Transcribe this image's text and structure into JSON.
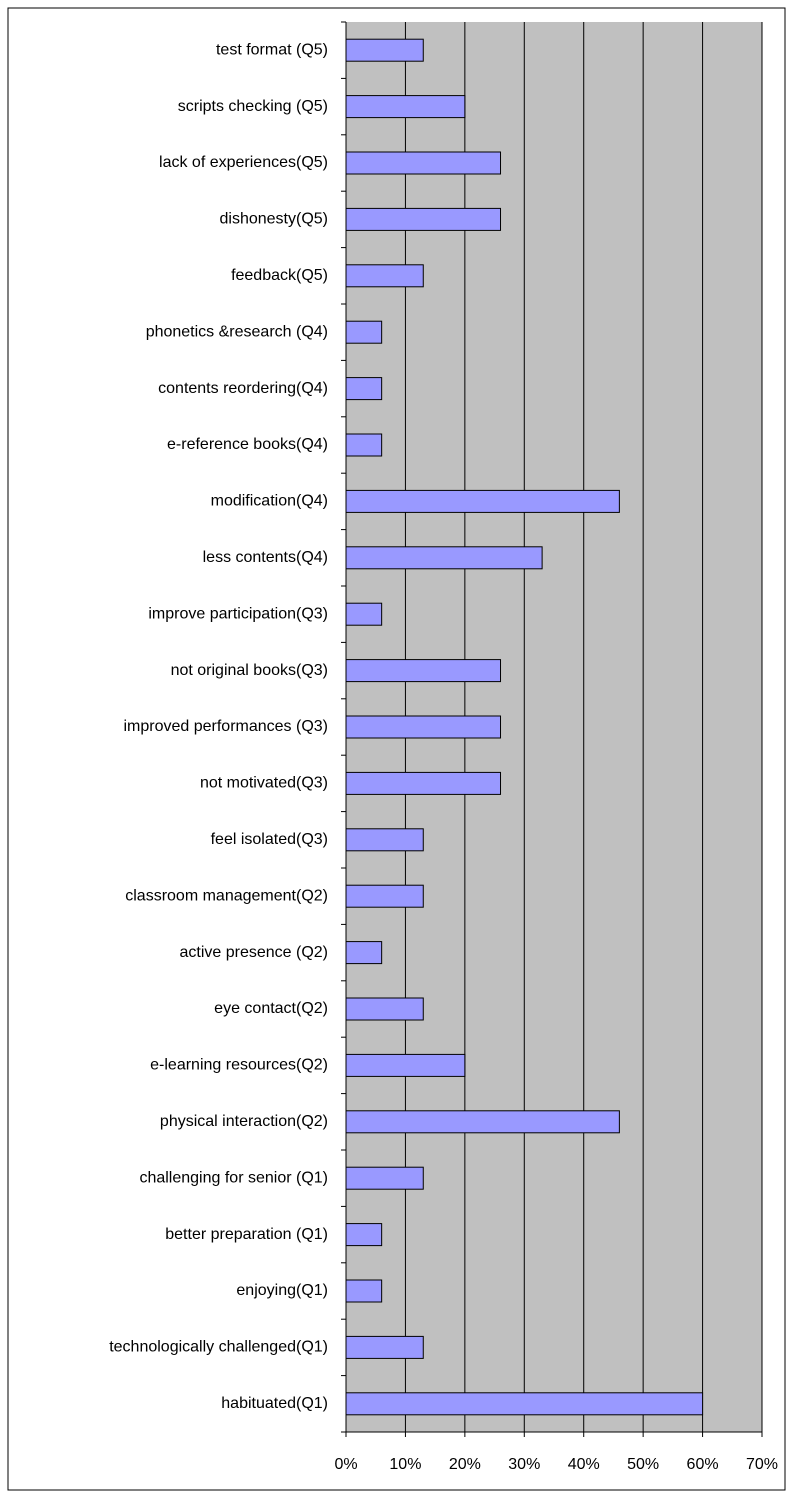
{
  "chart_data": {
    "type": "barh",
    "categories": [
      "test format (Q5)",
      "scripts checking (Q5)",
      "lack of experiences(Q5)",
      "dishonesty(Q5)",
      "feedback(Q5)",
      "phonetics &research (Q4)",
      "contents reordering(Q4)",
      "e-reference books(Q4)",
      "modification(Q4)",
      "less contents(Q4)",
      "improve participation(Q3)",
      "not original books(Q3)",
      "improved performances (Q3)",
      "not motivated(Q3)",
      "feel isolated(Q3)",
      "classroom management(Q2)",
      "active presence (Q2)",
      "eye contact(Q2)",
      "e-learning resources(Q2)",
      "physical interaction(Q2)",
      "challenging for senior (Q1)",
      "better preparation (Q1)",
      "enjoying(Q1)",
      "technologically challenged(Q1)",
      "habituated(Q1)"
    ],
    "values": [
      13,
      20,
      26,
      26,
      13,
      6,
      6,
      6,
      46,
      33,
      6,
      26,
      26,
      26,
      13,
      13,
      6,
      13,
      20,
      46,
      13,
      6,
      6,
      13,
      60
    ],
    "color": "#9999ff",
    "xlim": [
      0,
      70
    ],
    "xticks": [
      {
        "value": 0,
        "label": "0%"
      },
      {
        "value": 10,
        "label": "10%"
      },
      {
        "value": 20,
        "label": "20%"
      },
      {
        "value": 30,
        "label": "30%"
      },
      {
        "value": 40,
        "label": "40%"
      },
      {
        "value": 50,
        "label": "50%"
      },
      {
        "value": 60,
        "label": "60%"
      },
      {
        "value": 70,
        "label": "70%"
      }
    ],
    "grid": true
  }
}
